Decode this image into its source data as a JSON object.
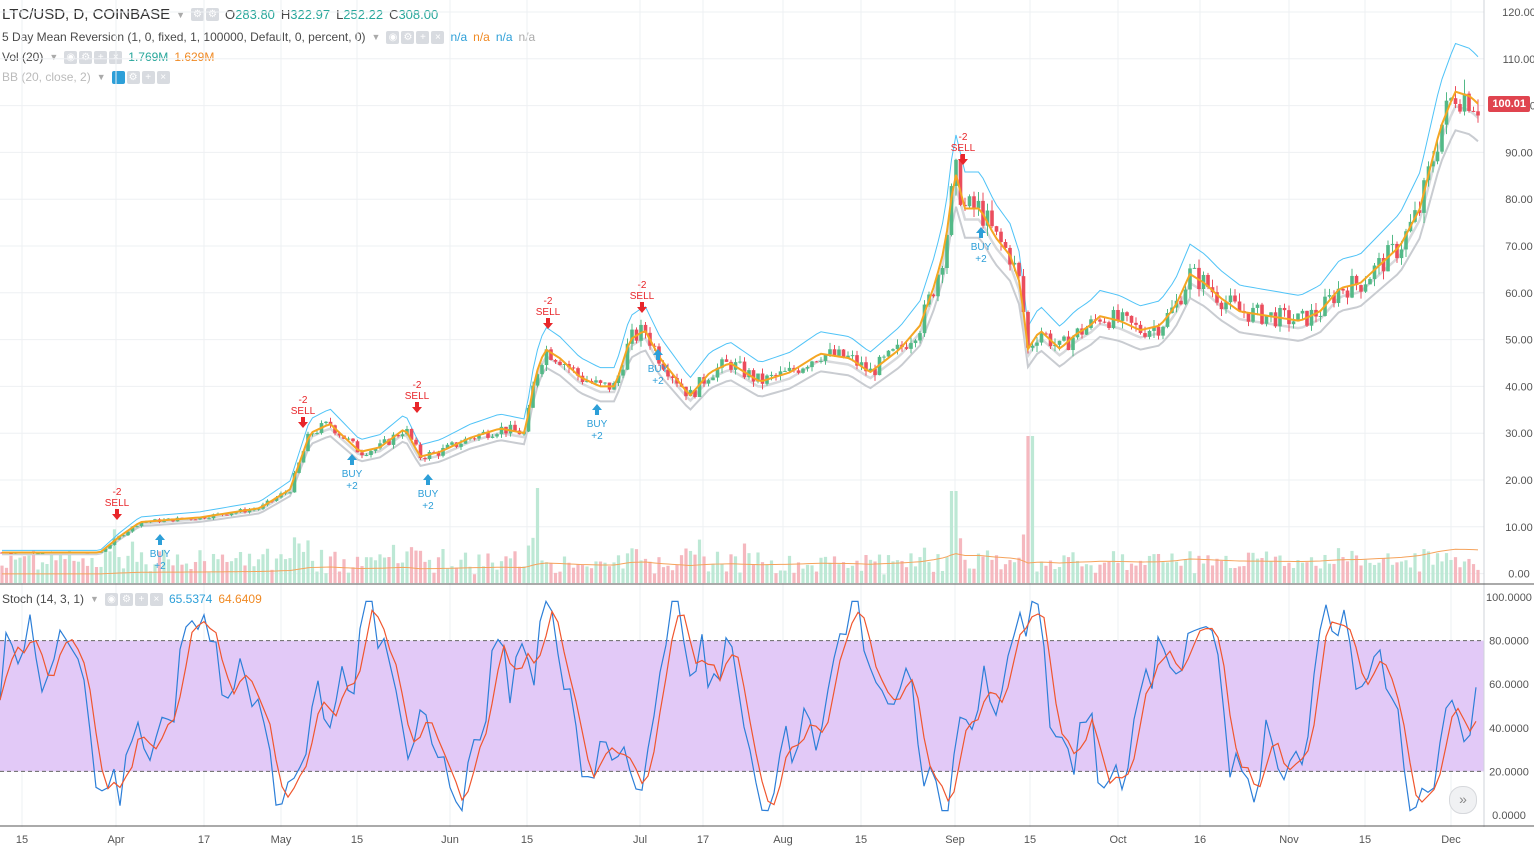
{
  "symbol": {
    "title": "LTC/USD, D, COINBASE",
    "o_label": "O",
    "o": "283.80",
    "h_label": "H",
    "h": "322.97",
    "l_label": "L",
    "l": "252.22",
    "c_label": "C",
    "c": "308.00"
  },
  "indicators": {
    "mean_rev": {
      "label": "5 Day Mean Reversion (1, 0, fixed, 1, 100000, Default, 0, percent, 0)",
      "v1": "n/a",
      "v2": "n/a",
      "v3": "n/a",
      "v4": "n/a"
    },
    "vol": {
      "label": "Vol (20)",
      "v1": "1.769M",
      "v2": "1.629M"
    },
    "bb": {
      "label": "BB (20, close, 2)"
    },
    "stoch": {
      "label": "Stoch (14, 3, 1)",
      "k": "65.5374",
      "d": "64.6409"
    }
  },
  "last_price": "100.01",
  "price_axis": [
    "120.00",
    "110.00",
    "100.00",
    "90.00",
    "80.00",
    "70.00",
    "60.00",
    "50.00",
    "40.00",
    "30.00",
    "20.00",
    "10.00",
    "0.00"
  ],
  "stoch_axis": [
    "100.0000",
    "80.0000",
    "60.0000",
    "40.0000",
    "20.0000",
    "0.0000"
  ],
  "time_axis": [
    "15",
    "Apr",
    "17",
    "May",
    "15",
    "Jun",
    "15",
    "Jul",
    "17",
    "Aug",
    "15",
    "Sep",
    "15",
    "Oct",
    "16",
    "Nov",
    "15",
    "Dec"
  ],
  "signals": [
    {
      "type": "sell",
      "qty": "-2",
      "label": "SELL"
    },
    {
      "type": "buy",
      "qty": "+2",
      "label": "BUY"
    },
    {
      "type": "sell",
      "qty": "-2",
      "label": "SELL"
    },
    {
      "type": "buy",
      "qty": "+2",
      "label": "BUY"
    },
    {
      "type": "sell",
      "qty": "-2",
      "label": "SELL"
    },
    {
      "type": "buy",
      "qty": "+2",
      "label": "BUY"
    },
    {
      "type": "sell",
      "qty": "-2",
      "label": "SELL"
    },
    {
      "type": "buy",
      "qty": "+2",
      "label": "BUY"
    },
    {
      "type": "sell",
      "qty": "-2",
      "label": "SELL"
    },
    {
      "type": "buy",
      "qty": "+2",
      "label": "BUY"
    },
    {
      "type": "sell",
      "qty": "-2",
      "label": "SELL"
    },
    {
      "type": "buy",
      "qty": "+2",
      "label": "BUY"
    }
  ],
  "icons": {
    "settings": "gear-icon",
    "visibility": "eye-icon",
    "add": "plus-icon",
    "remove": "close-icon",
    "scroll": "double-chevron-right-icon"
  },
  "colors": {
    "up": "#53b987",
    "down": "#eb4d5c",
    "sell": "#e8262a",
    "buy": "#2d9fd8",
    "ma_fast": "#f5a623",
    "bb": "#4fc3f7",
    "stoch_k": "#2d7fd8",
    "stoch_d": "#f0562e",
    "stoch_band": "#e2c9f7"
  }
}
